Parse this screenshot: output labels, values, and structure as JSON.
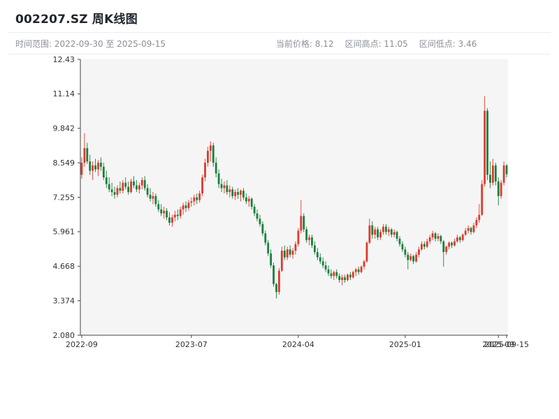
{
  "header": {
    "title": "002207.SZ 周K线图",
    "time_range": "时间范围: 2022-09-30 至 2025-09-15",
    "stats": {
      "current_price": "当前价格: 8.12",
      "range_high": "区间高点: 11.05",
      "range_low": "区间低点: 3.46"
    }
  },
  "chart_data": {
    "type": "candlestick",
    "title": "002207.SZ 周K线图",
    "symbol": "002207.SZ",
    "interval": "weekly",
    "current_price": 8.12,
    "range_high": 11.05,
    "range_low": 3.46,
    "y_range": [
      2.08,
      12.43
    ],
    "y_ticks": [
      "12.43",
      "11.14",
      "9.842",
      "8.549",
      "7.255",
      "5.961",
      "4.668",
      "3.374",
      "2.080"
    ],
    "x_ticks": [
      {
        "label": "2022-09",
        "i": 0
      },
      {
        "label": "2023-07",
        "i": 40
      },
      {
        "label": "2024-04",
        "i": 79
      },
      {
        "label": "2025-01",
        "i": 118
      },
      {
        "label": "2025-09",
        "i": 152
      },
      {
        "label": "2025-09-15",
        "i": 155
      }
    ],
    "up_color": "#e0382c",
    "down_color": "#18803c",
    "plot_bg_color": "#f5f5f5",
    "axis_color": "#444444",
    "tick_color": "#333333",
    "candles": [
      [
        "2022-09-30",
        8.1,
        8.75,
        7.95,
        8.55
      ],
      [
        "2022-10-07",
        8.55,
        9.66,
        8.4,
        9.1
      ],
      [
        "2022-10-14",
        9.1,
        9.3,
        8.5,
        8.6
      ],
      [
        "2022-10-21",
        8.6,
        8.85,
        8.1,
        8.25
      ],
      [
        "2022-10-28",
        8.25,
        8.6,
        7.9,
        8.45
      ],
      [
        "2022-11-04",
        8.45,
        8.7,
        8.2,
        8.3
      ],
      [
        "2022-11-11",
        8.3,
        8.65,
        8.05,
        8.55
      ],
      [
        "2022-11-18",
        8.55,
        8.75,
        8.25,
        8.4
      ],
      [
        "2022-11-25",
        8.4,
        8.55,
        7.9,
        8.0
      ],
      [
        "2022-12-02",
        8.0,
        8.25,
        7.6,
        7.75
      ],
      [
        "2022-12-09",
        7.75,
        8.0,
        7.45,
        7.55
      ],
      [
        "2022-12-16",
        7.55,
        7.8,
        7.3,
        7.45
      ],
      [
        "2022-12-23",
        7.45,
        7.65,
        7.2,
        7.35
      ],
      [
        "2022-12-30",
        7.35,
        7.7,
        7.25,
        7.6
      ],
      [
        "2023-01-06",
        7.6,
        7.85,
        7.4,
        7.5
      ],
      [
        "2023-01-13",
        7.5,
        7.9,
        7.4,
        7.8
      ],
      [
        "2023-01-20",
        7.8,
        8.0,
        7.55,
        7.65
      ],
      [
        "2023-01-27",
        7.65,
        7.85,
        7.35,
        7.45
      ],
      [
        "2023-02-03",
        7.45,
        7.95,
        7.4,
        7.85
      ],
      [
        "2023-02-10",
        7.85,
        8.05,
        7.6,
        7.7
      ],
      [
        "2023-02-17",
        7.7,
        7.9,
        7.45,
        7.55
      ],
      [
        "2023-02-24",
        7.55,
        7.8,
        7.4,
        7.7
      ],
      [
        "2023-03-03",
        7.7,
        8.0,
        7.55,
        7.9
      ],
      [
        "2023-03-10",
        7.9,
        8.05,
        7.5,
        7.6
      ],
      [
        "2023-03-17",
        7.6,
        7.75,
        7.25,
        7.35
      ],
      [
        "2023-03-24",
        7.35,
        7.6,
        7.1,
        7.2
      ],
      [
        "2023-03-31",
        7.2,
        7.45,
        7.0,
        7.3
      ],
      [
        "2023-04-07",
        7.3,
        7.4,
        6.9,
        7.0
      ],
      [
        "2023-04-14",
        7.0,
        7.15,
        6.7,
        6.8
      ],
      [
        "2023-04-21",
        6.8,
        7.0,
        6.55,
        6.65
      ],
      [
        "2023-04-28",
        6.65,
        6.9,
        6.45,
        6.75
      ],
      [
        "2023-05-05",
        6.75,
        6.85,
        6.4,
        6.5
      ],
      [
        "2023-05-12",
        6.5,
        6.7,
        6.2,
        6.3
      ],
      [
        "2023-05-19",
        6.3,
        6.6,
        6.15,
        6.5
      ],
      [
        "2023-05-26",
        6.5,
        6.75,
        6.35,
        6.6
      ],
      [
        "2023-06-02",
        6.6,
        6.8,
        6.4,
        6.55
      ],
      [
        "2023-06-09",
        6.55,
        6.9,
        6.45,
        6.8
      ],
      [
        "2023-06-16",
        6.8,
        7.05,
        6.6,
        6.95
      ],
      [
        "2023-06-23",
        6.95,
        7.1,
        6.7,
        6.85
      ],
      [
        "2023-06-30",
        6.85,
        7.15,
        6.75,
        7.05
      ],
      [
        "2023-07-07",
        7.05,
        7.25,
        6.9,
        7.1
      ],
      [
        "2023-07-14",
        7.1,
        7.35,
        6.95,
        7.25
      ],
      [
        "2023-07-21",
        7.25,
        7.4,
        7.0,
        7.15
      ],
      [
        "2023-07-28",
        7.15,
        7.5,
        7.05,
        7.4
      ],
      [
        "2023-08-04",
        7.4,
        8.1,
        7.3,
        8.0
      ],
      [
        "2023-08-11",
        8.0,
        8.7,
        7.85,
        8.55
      ],
      [
        "2023-08-18",
        8.55,
        9.15,
        8.4,
        9.0
      ],
      [
        "2023-08-25",
        9.0,
        9.35,
        8.6,
        9.2
      ],
      [
        "2023-09-01",
        9.2,
        9.3,
        8.4,
        8.55
      ],
      [
        "2023-09-08",
        8.55,
        8.75,
        8.0,
        8.15
      ],
      [
        "2023-09-15",
        8.15,
        8.3,
        7.6,
        7.75
      ],
      [
        "2023-09-22",
        7.75,
        7.95,
        7.45,
        7.6
      ],
      [
        "2023-09-29",
        7.6,
        7.85,
        7.4,
        7.7
      ],
      [
        "2023-10-06",
        7.7,
        7.9,
        7.35,
        7.45
      ],
      [
        "2023-10-13",
        7.45,
        7.7,
        7.25,
        7.55
      ],
      [
        "2023-10-20",
        7.55,
        7.65,
        7.2,
        7.3
      ],
      [
        "2023-10-27",
        7.3,
        7.55,
        7.15,
        7.45
      ],
      [
        "2023-11-03",
        7.45,
        7.6,
        7.2,
        7.35
      ],
      [
        "2023-11-10",
        7.35,
        7.55,
        7.1,
        7.5
      ],
      [
        "2023-11-17",
        7.5,
        7.6,
        7.15,
        7.25
      ],
      [
        "2023-11-24",
        7.25,
        7.4,
        7.0,
        7.1
      ],
      [
        "2023-12-01",
        7.1,
        7.3,
        6.9,
        7.2
      ],
      [
        "2023-12-08",
        7.2,
        7.25,
        6.8,
        6.9
      ],
      [
        "2023-12-15",
        6.9,
        7.0,
        6.55,
        6.65
      ],
      [
        "2023-12-22",
        6.65,
        6.8,
        6.35,
        6.45
      ],
      [
        "2023-12-29",
        6.45,
        6.6,
        6.15,
        6.25
      ],
      [
        "2024-01-05",
        6.25,
        6.35,
        5.8,
        5.9
      ],
      [
        "2024-01-12",
        5.9,
        6.0,
        5.45,
        5.55
      ],
      [
        "2024-01-19",
        5.55,
        5.65,
        5.05,
        5.15
      ],
      [
        "2024-01-26",
        5.15,
        5.3,
        4.6,
        4.7
      ],
      [
        "2024-02-02",
        4.7,
        4.8,
        3.9,
        4.0
      ],
      [
        "2024-02-09",
        4.0,
        4.05,
        3.46,
        3.7
      ],
      [
        "2024-02-16",
        3.7,
        4.6,
        3.6,
        4.5
      ],
      [
        "2024-02-23",
        4.5,
        5.4,
        4.45,
        5.25
      ],
      [
        "2024-03-01",
        5.25,
        5.45,
        4.9,
        5.0
      ],
      [
        "2024-03-08",
        5.0,
        5.4,
        4.9,
        5.3
      ],
      [
        "2024-03-15",
        5.3,
        5.45,
        5.0,
        5.1
      ],
      [
        "2024-03-22",
        5.1,
        5.35,
        4.95,
        5.25
      ],
      [
        "2024-03-29",
        5.25,
        5.6,
        5.1,
        5.5
      ],
      [
        "2024-04-05",
        5.5,
        6.1,
        5.4,
        6.0
      ],
      [
        "2024-04-12",
        6.0,
        7.15,
        5.9,
        6.55
      ],
      [
        "2024-04-19",
        6.55,
        6.65,
        5.95,
        6.05
      ],
      [
        "2024-04-26",
        6.05,
        6.15,
        5.55,
        5.65
      ],
      [
        "2024-05-03",
        5.65,
        5.85,
        5.45,
        5.75
      ],
      [
        "2024-05-10",
        5.75,
        5.85,
        5.35,
        5.45
      ],
      [
        "2024-05-17",
        5.45,
        5.6,
        5.1,
        5.2
      ],
      [
        "2024-05-24",
        5.2,
        5.35,
        4.9,
        5.0
      ],
      [
        "2024-05-31",
        5.0,
        5.15,
        4.75,
        4.85
      ],
      [
        "2024-06-07",
        4.85,
        5.0,
        4.6,
        4.7
      ],
      [
        "2024-06-14",
        4.7,
        4.85,
        4.45,
        4.55
      ],
      [
        "2024-06-21",
        4.55,
        4.7,
        4.3,
        4.4
      ],
      [
        "2024-06-28",
        4.4,
        4.55,
        4.2,
        4.3
      ],
      [
        "2024-07-05",
        4.3,
        4.5,
        4.15,
        4.45
      ],
      [
        "2024-07-12",
        4.45,
        4.55,
        4.2,
        4.3
      ],
      [
        "2024-07-19",
        4.3,
        4.4,
        4.05,
        4.15
      ],
      [
        "2024-07-26",
        4.15,
        4.35,
        3.95,
        4.25
      ],
      [
        "2024-08-02",
        4.25,
        4.35,
        4.05,
        4.15
      ],
      [
        "2024-08-09",
        4.15,
        4.4,
        4.1,
        4.35
      ],
      [
        "2024-08-16",
        4.35,
        4.45,
        4.15,
        4.25
      ],
      [
        "2024-08-23",
        4.25,
        4.5,
        4.2,
        4.45
      ],
      [
        "2024-08-30",
        4.45,
        4.6,
        4.3,
        4.55
      ],
      [
        "2024-09-06",
        4.55,
        4.65,
        4.35,
        4.45
      ],
      [
        "2024-09-13",
        4.45,
        4.7,
        4.4,
        4.65
      ],
      [
        "2024-09-20",
        4.65,
        4.9,
        4.55,
        4.85
      ],
      [
        "2024-09-27",
        4.85,
        5.6,
        4.8,
        5.55
      ],
      [
        "2024-10-04",
        5.55,
        6.45,
        5.5,
        6.2
      ],
      [
        "2024-10-11",
        6.2,
        6.35,
        5.7,
        5.85
      ],
      [
        "2024-10-18",
        5.85,
        6.15,
        5.7,
        6.05
      ],
      [
        "2024-10-25",
        6.05,
        6.15,
        5.65,
        5.75
      ],
      [
        "2024-11-01",
        5.75,
        6.05,
        5.65,
        5.95
      ],
      [
        "2024-11-08",
        5.95,
        6.25,
        5.85,
        6.15
      ],
      [
        "2024-11-15",
        6.15,
        6.25,
        5.85,
        5.95
      ],
      [
        "2024-11-22",
        5.95,
        6.15,
        5.8,
        6.05
      ],
      [
        "2024-11-29",
        6.05,
        6.1,
        5.75,
        5.85
      ],
      [
        "2024-12-06",
        5.85,
        6.05,
        5.75,
        5.95
      ],
      [
        "2024-12-13",
        5.95,
        6.0,
        5.6,
        5.7
      ],
      [
        "2024-12-20",
        5.7,
        5.8,
        5.4,
        5.5
      ],
      [
        "2024-12-27",
        5.5,
        5.6,
        5.2,
        5.3
      ],
      [
        "2025-01-03",
        5.3,
        5.4,
        5.0,
        5.1
      ],
      [
        "2025-01-10",
        5.1,
        5.2,
        4.55,
        4.9
      ],
      [
        "2025-01-17",
        4.9,
        5.15,
        4.85,
        5.05
      ],
      [
        "2025-01-24",
        5.05,
        5.1,
        4.75,
        4.85
      ],
      [
        "2025-01-31",
        4.85,
        5.2,
        4.8,
        5.1
      ],
      [
        "2025-02-07",
        5.1,
        5.4,
        5.0,
        5.3
      ],
      [
        "2025-02-14",
        5.3,
        5.6,
        5.25,
        5.5
      ],
      [
        "2025-02-21",
        5.5,
        5.6,
        5.3,
        5.4
      ],
      [
        "2025-02-28",
        5.4,
        5.7,
        5.35,
        5.6
      ],
      [
        "2025-03-07",
        5.6,
        5.85,
        5.5,
        5.75
      ],
      [
        "2025-03-14",
        5.75,
        6.0,
        5.65,
        5.9
      ],
      [
        "2025-03-21",
        5.9,
        5.95,
        5.6,
        5.7
      ],
      [
        "2025-03-28",
        5.7,
        5.9,
        5.6,
        5.8
      ],
      [
        "2025-04-04",
        5.8,
        5.85,
        5.5,
        5.6
      ],
      [
        "2025-04-11",
        5.6,
        5.65,
        4.65,
        5.2
      ],
      [
        "2025-04-18",
        5.2,
        5.45,
        5.1,
        5.4
      ],
      [
        "2025-04-25",
        5.4,
        5.6,
        5.3,
        5.55
      ],
      [
        "2025-05-02",
        5.55,
        5.6,
        5.35,
        5.45
      ],
      [
        "2025-05-09",
        5.45,
        5.7,
        5.4,
        5.6
      ],
      [
        "2025-05-16",
        5.6,
        5.85,
        5.55,
        5.75
      ],
      [
        "2025-05-23",
        5.75,
        5.8,
        5.55,
        5.65
      ],
      [
        "2025-05-30",
        5.65,
        5.9,
        5.6,
        5.85
      ],
      [
        "2025-06-06",
        5.85,
        6.1,
        5.8,
        6.0
      ],
      [
        "2025-06-13",
        6.0,
        6.2,
        5.9,
        6.1
      ],
      [
        "2025-06-20",
        6.1,
        6.15,
        5.85,
        5.95
      ],
      [
        "2025-06-27",
        5.95,
        6.3,
        5.9,
        6.2
      ],
      [
        "2025-07-04",
        6.2,
        6.5,
        6.1,
        6.4
      ],
      [
        "2025-07-11",
        6.4,
        7.0,
        6.3,
        6.6
      ],
      [
        "2025-07-18",
        6.6,
        7.9,
        6.55,
        7.75
      ],
      [
        "2025-07-25",
        7.75,
        11.05,
        7.65,
        10.5
      ],
      [
        "2025-08-01",
        10.5,
        10.6,
        7.9,
        8.1
      ],
      [
        "2025-08-08",
        8.1,
        8.6,
        7.6,
        7.8
      ],
      [
        "2025-08-15",
        7.8,
        8.7,
        7.7,
        8.45
      ],
      [
        "2025-08-22",
        8.45,
        8.55,
        7.7,
        7.85
      ],
      [
        "2025-08-29",
        7.85,
        8.0,
        6.95,
        7.3
      ],
      [
        "2025-09-05",
        7.3,
        7.9,
        7.2,
        7.8
      ],
      [
        "2025-09-12",
        7.8,
        8.6,
        7.7,
        8.45
      ],
      [
        "2025-09-15",
        8.45,
        8.5,
        8.0,
        8.12
      ]
    ]
  }
}
